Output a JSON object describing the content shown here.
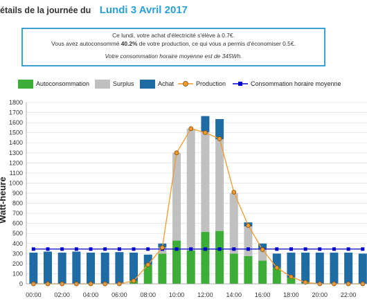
{
  "heading": {
    "prefix": "étails de la journée du",
    "date": "Lundi 3 Avril 2017"
  },
  "summary": {
    "line1": "Ce lundi, votre achat d'électricité s'élève à 0.7€.",
    "line2_before": "Vous avez autoconsommé ",
    "line2_bold": "40.2%",
    "line2_after": " de votre production, ce qui vous a permis d'économiser 0.5€.",
    "line3": "Votre consommation horaire moyenne est de 345Wh."
  },
  "colors": {
    "autoconsommation": "#3cae37",
    "surplus": "#c0c0c0",
    "achat": "#1f6ba4",
    "production": "#f39a2e",
    "consommation_moyenne": "#0000cc",
    "heading_date": "#2a9fd8",
    "summary_border": "#3aa0d8"
  },
  "chart_data": {
    "type": "bar",
    "stacked": true,
    "ylabel": "Watt-heure",
    "ylim": [
      0,
      1800
    ],
    "yticks": [
      0,
      100,
      200,
      300,
      400,
      500,
      600,
      700,
      800,
      900,
      1000,
      1100,
      1200,
      1300,
      1400,
      1500,
      1600,
      1700,
      1800
    ],
    "categories": [
      "00:00",
      "01:00",
      "02:00",
      "03:00",
      "04:00",
      "05:00",
      "06:00",
      "07:00",
      "08:00",
      "09:00",
      "10:00",
      "11:00",
      "12:00",
      "13:00",
      "14:00",
      "15:00",
      "16:00",
      "17:00",
      "18:00",
      "19:00",
      "20:00",
      "21:00",
      "22:00",
      "23:00"
    ],
    "xtick_labels": [
      "00:00",
      "02:00",
      "04:00",
      "06:00",
      "08:00",
      "10:00",
      "12:00",
      "14:00",
      "16:00",
      "18:00",
      "20:00",
      "22:00"
    ],
    "series": [
      {
        "name": "Autoconsommation",
        "kind": "bar",
        "values": [
          0,
          0,
          0,
          0,
          0,
          0,
          0,
          30,
          190,
          300,
          430,
          330,
          515,
          525,
          300,
          275,
          230,
          160,
          60,
          10,
          0,
          0,
          0,
          0
        ]
      },
      {
        "name": "Surplus",
        "kind": "bar",
        "values": [
          0,
          0,
          0,
          0,
          0,
          0,
          0,
          0,
          0,
          60,
          870,
          1210,
          990,
          910,
          600,
          295,
          110,
          0,
          0,
          0,
          0,
          0,
          0,
          0
        ]
      },
      {
        "name": "Achat",
        "kind": "bar",
        "values": [
          310,
          320,
          310,
          320,
          310,
          310,
          315,
          280,
          100,
          40,
          0,
          0,
          160,
          200,
          0,
          40,
          60,
          140,
          250,
          300,
          310,
          310,
          310,
          300
        ]
      },
      {
        "name": "Production",
        "kind": "line",
        "values": [
          0,
          0,
          0,
          0,
          0,
          0,
          0,
          30,
          190,
          360,
          1300,
          1540,
          1500,
          1440,
          910,
          580,
          340,
          160,
          70,
          15,
          0,
          0,
          0,
          0
        ]
      },
      {
        "name": "Consommation horaire moyenne",
        "kind": "line",
        "values": [
          345,
          345,
          345,
          345,
          345,
          345,
          345,
          345,
          345,
          345,
          345,
          345,
          345,
          345,
          345,
          345,
          345,
          345,
          345,
          345,
          345,
          345,
          345,
          345
        ]
      }
    ]
  }
}
